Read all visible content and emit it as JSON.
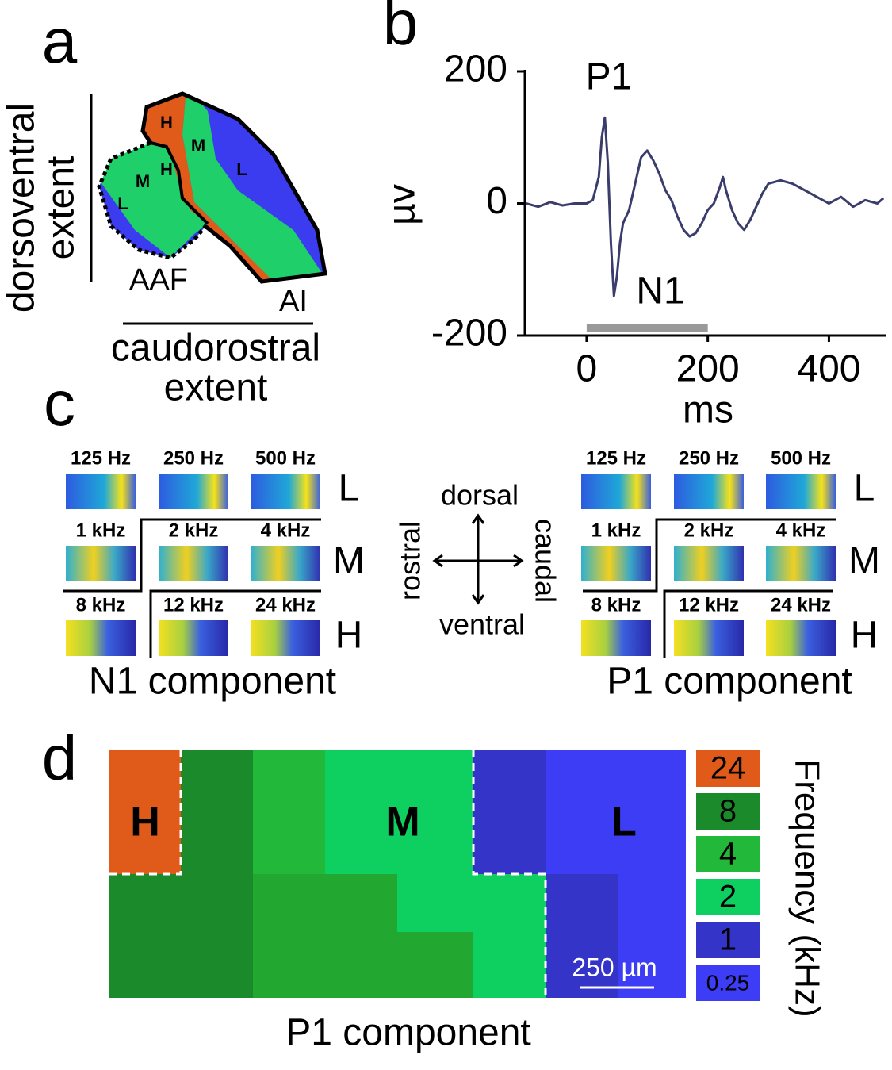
{
  "panel_a": {
    "label": "a",
    "y_label": [
      "dorsoventral",
      "extent"
    ],
    "x_label": [
      "caudorostral",
      "extent"
    ],
    "fields": [
      "AAF",
      "AI"
    ],
    "regions": [
      "H",
      "M",
      "L",
      "H",
      "M",
      "L"
    ]
  },
  "chart_data": {
    "type": "line",
    "label": "b",
    "x": [
      -100,
      -80,
      -60,
      -40,
      -20,
      0,
      10,
      20,
      25,
      30,
      35,
      40,
      45,
      50,
      55,
      60,
      70,
      80,
      90,
      100,
      110,
      120,
      130,
      140,
      150,
      160,
      170,
      180,
      190,
      200,
      210,
      220,
      225,
      230,
      240,
      250,
      260,
      270,
      280,
      290,
      300,
      320,
      340,
      360,
      380,
      400,
      420,
      440,
      460,
      480,
      490
    ],
    "values": [
      0,
      -5,
      2,
      -3,
      0,
      0,
      5,
      40,
      100,
      130,
      60,
      -60,
      -140,
      -110,
      -60,
      -30,
      -10,
      30,
      70,
      80,
      65,
      45,
      20,
      5,
      -20,
      -40,
      -50,
      -45,
      -30,
      -10,
      0,
      25,
      40,
      20,
      -10,
      -30,
      -40,
      -25,
      -5,
      15,
      30,
      35,
      30,
      20,
      10,
      0,
      10,
      -5,
      5,
      0,
      8
    ],
    "color": "#3a3d6b",
    "xlim": [
      -102,
      495
    ],
    "ylim": [
      -200,
      200
    ],
    "xticks": [
      0,
      200,
      400
    ],
    "yticks": [
      200,
      0,
      -200
    ],
    "x_label": "ms",
    "y_label": "µv",
    "annotations": [
      "P1",
      "N1"
    ],
    "stimulus": [
      0,
      200
    ]
  },
  "panel_c": {
    "label": "c",
    "frequencies": [
      "125 Hz",
      "250 Hz",
      "500 Hz",
      "1 kHz",
      "2 kHz",
      "4 kHz",
      "8 kHz",
      "12 kHz",
      "24 kHz"
    ],
    "rows": [
      "L",
      "M",
      "H"
    ],
    "components": [
      "N1 component",
      "P1 component"
    ],
    "compass": [
      "dorsal",
      "rostral",
      "caudal",
      "ventral"
    ]
  },
  "panel_d": {
    "label": "d",
    "regions": [
      "H",
      "M",
      "L"
    ],
    "scale_bar": "250 µm",
    "component": "P1 component",
    "colorbar_title": "Frequency (kHz)",
    "colorbar_labels": [
      "24",
      "8",
      "4",
      "2",
      "1",
      "0.25"
    ]
  }
}
